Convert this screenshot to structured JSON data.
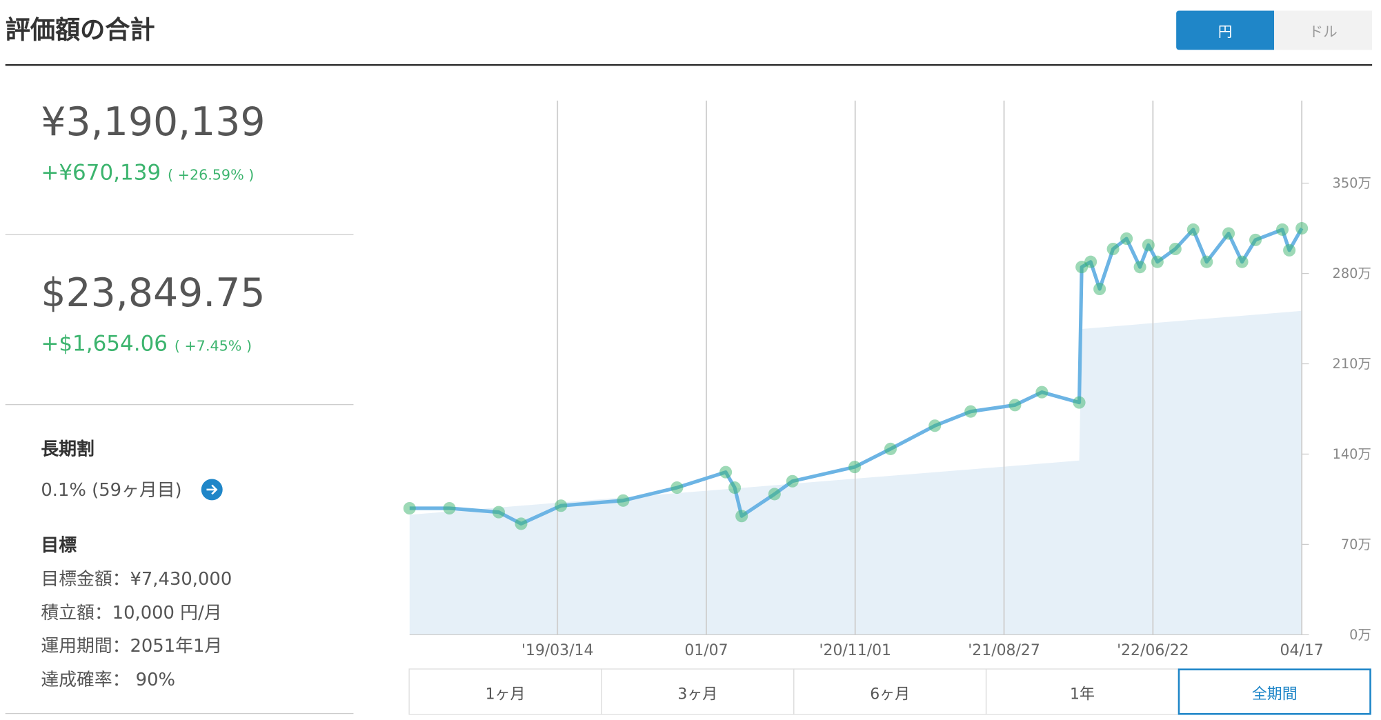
{
  "header": {
    "title": "評価額の合計",
    "currency_buttons": [
      "円",
      "ドル"
    ]
  },
  "summary": {
    "yen": {
      "total": "¥3,190,139",
      "gain": "+¥670,139",
      "rate": "( +26.59% )"
    },
    "usd": {
      "total": "$23,849.75",
      "gain": "+$1,654.06",
      "rate": "( +7.45% )"
    }
  },
  "discount": {
    "title": "長期割",
    "text": "0.1% (59ヶ月目)"
  },
  "goal": {
    "title": "目標",
    "lines": [
      "目標金額：¥7,430,000",
      "積立額：10,000 円/月",
      "運用期間：2051年1月",
      "達成確率： 90%"
    ]
  },
  "range_buttons": [
    "1ヶ月",
    "3ヶ月",
    "6ヶ月",
    "1年",
    "全期間"
  ],
  "chart_data": {
    "type": "line",
    "xlim": [
      0,
      1792
    ],
    "xticks": [
      {
        "value": 297,
        "label": "'19/03/14"
      },
      {
        "value": 596,
        "label": "01/07"
      },
      {
        "value": 895,
        "label": "'20/11/01"
      },
      {
        "value": 1194,
        "label": "'21/08/27"
      },
      {
        "value": 1493,
        "label": "'22/06/22"
      },
      {
        "value": 1792,
        "label": "04/17"
      }
    ],
    "ylim": [
      0,
      414
    ],
    "yticks": [
      {
        "value": 0,
        "label": "0万"
      },
      {
        "value": 70,
        "label": "70万"
      },
      {
        "value": 140,
        "label": "140万"
      },
      {
        "value": 210,
        "label": "210万"
      },
      {
        "value": 280,
        "label": "280万"
      },
      {
        "value": 350,
        "label": "350万"
      }
    ],
    "grid": true,
    "series": [
      {
        "color": "#6cb4e4",
        "marker_color": "#3cb46e",
        "x": [
          0,
          80,
          179,
          224,
          304,
          429,
          537,
          635,
          653,
          667,
          733,
          769,
          894,
          966,
          1055,
          1127,
          1216,
          1270,
          1345,
          1350,
          1368,
          1386,
          1413,
          1440,
          1467,
          1484,
          1502,
          1538,
          1574,
          1601,
          1645,
          1672,
          1699,
          1753,
          1767,
          1792
        ],
        "values": [
          98,
          98,
          95,
          86,
          100,
          104,
          114,
          126,
          114,
          92,
          109,
          119,
          130,
          144,
          162,
          173,
          178,
          188,
          180,
          285,
          289,
          268,
          299,
          307,
          285,
          302,
          289,
          299,
          314,
          289,
          311,
          289,
          306,
          314,
          298,
          315
        ]
      },
      {
        "color": "#e6f0f8",
        "area": true,
        "x": [
          0,
          1345,
          1350,
          1792
        ],
        "values": [
          93,
          135,
          237,
          251
        ]
      }
    ]
  }
}
